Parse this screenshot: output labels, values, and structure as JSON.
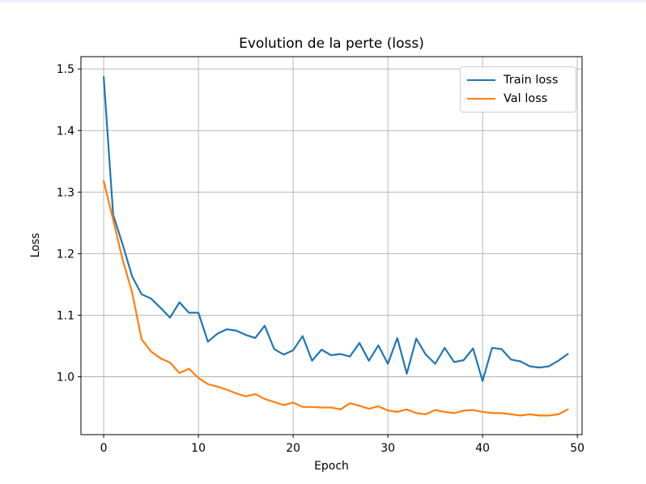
{
  "window": {
    "background_color": "#ffffff",
    "top_strip_color": "#f1f1fb",
    "axis_color": "#000000"
  },
  "chart_data": {
    "type": "line",
    "title": "Evolution de la perte (loss)",
    "xlabel": "Epoch",
    "ylabel": "Loss",
    "grid": true,
    "grid_color": "#b0b0b0",
    "legend_position": "upper right",
    "xlim": [
      -2.4,
      50.5
    ],
    "ylim": [
      0.906,
      1.52
    ],
    "xticks": [
      0,
      10,
      20,
      30,
      40,
      50
    ],
    "xtick_labels": [
      "0",
      "10",
      "20",
      "30",
      "40",
      "50"
    ],
    "yticks": [
      1.0,
      1.1,
      1.2,
      1.3,
      1.4,
      1.5
    ],
    "ytick_labels": [
      "1.0",
      "1.1",
      "1.2",
      "1.3",
      "1.4",
      "1.5"
    ],
    "x": [
      0,
      1,
      2,
      3,
      4,
      5,
      6,
      7,
      8,
      9,
      10,
      11,
      12,
      13,
      14,
      15,
      16,
      17,
      18,
      19,
      20,
      21,
      22,
      23,
      24,
      25,
      26,
      27,
      28,
      29,
      30,
      31,
      32,
      33,
      34,
      35,
      36,
      37,
      38,
      39,
      40,
      41,
      42,
      43,
      44,
      45,
      46,
      47,
      48,
      49
    ],
    "series": [
      {
        "name": "Train loss",
        "color": "#1f77b4",
        "values": [
          1.487,
          1.263,
          1.215,
          1.163,
          1.134,
          1.127,
          1.112,
          1.096,
          1.121,
          1.104,
          1.104,
          1.057,
          1.07,
          1.077,
          1.075,
          1.068,
          1.063,
          1.083,
          1.045,
          1.036,
          1.043,
          1.066,
          1.026,
          1.044,
          1.035,
          1.037,
          1.033,
          1.055,
          1.026,
          1.051,
          1.021,
          1.063,
          1.005,
          1.062,
          1.036,
          1.021,
          1.047,
          1.024,
          1.027,
          1.046,
          0.993,
          1.047,
          1.045,
          1.028,
          1.025,
          1.017,
          1.015,
          1.017,
          1.026,
          1.037
        ]
      },
      {
        "name": "Val loss",
        "color": "#ff7f0e",
        "values": [
          1.318,
          1.255,
          1.19,
          1.137,
          1.061,
          1.041,
          1.03,
          1.023,
          1.006,
          1.013,
          0.998,
          0.988,
          0.984,
          0.979,
          0.973,
          0.968,
          0.972,
          0.964,
          0.959,
          0.954,
          0.958,
          0.951,
          0.951,
          0.95,
          0.95,
          0.947,
          0.957,
          0.953,
          0.948,
          0.952,
          0.945,
          0.943,
          0.947,
          0.941,
          0.939,
          0.946,
          0.943,
          0.941,
          0.945,
          0.946,
          0.943,
          0.941,
          0.941,
          0.939,
          0.937,
          0.939,
          0.937,
          0.937,
          0.939,
          0.947
        ]
      }
    ]
  }
}
